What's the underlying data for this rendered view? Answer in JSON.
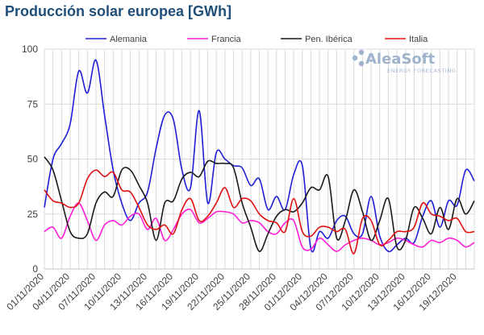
{
  "title": "Producción solar europea [GWh]",
  "logo": {
    "name": "AleaSoft",
    "tagline": "ENERGY FORECASTING"
  },
  "chart_data": {
    "type": "line",
    "title": "Producción solar europea [GWh]",
    "ylim": [
      0,
      100
    ],
    "yticks": [
      0,
      25,
      50,
      75,
      100
    ],
    "grid": true,
    "legend_position": "top",
    "x": [
      "01/11/2020",
      "02/11/2020",
      "03/11/2020",
      "04/11/2020",
      "05/11/2020",
      "06/11/2020",
      "07/11/2020",
      "08/11/2020",
      "09/11/2020",
      "10/11/2020",
      "11/11/2020",
      "12/11/2020",
      "13/11/2020",
      "14/11/2020",
      "15/11/2020",
      "16/11/2020",
      "17/11/2020",
      "18/11/2020",
      "19/11/2020",
      "20/11/2020",
      "21/11/2020",
      "22/11/2020",
      "23/11/2020",
      "24/11/2020",
      "25/11/2020",
      "26/11/2020",
      "27/11/2020",
      "28/11/2020",
      "29/11/2020",
      "30/11/2020",
      "01/12/2020",
      "02/12/2020",
      "03/12/2020",
      "04/12/2020",
      "05/12/2020",
      "06/12/2020",
      "07/12/2020",
      "08/12/2020",
      "09/12/2020",
      "10/12/2020",
      "11/12/2020",
      "12/12/2020",
      "13/12/2020",
      "14/12/2020",
      "15/12/2020",
      "16/12/2020",
      "17/12/2020",
      "18/12/2020",
      "19/12/2020",
      "20/12/2020",
      "21/12/2020"
    ],
    "xtick_labels": [
      "01/11/2020",
      "04/11/2020",
      "07/11/2020",
      "10/11/2020",
      "13/11/2020",
      "16/11/2020",
      "19/11/2020",
      "22/11/2020",
      "25/11/2020",
      "28/11/2020",
      "01/12/2020",
      "04/12/2020",
      "07/12/2020",
      "10/12/2020",
      "13/12/2020",
      "16/12/2020",
      "19/12/2020"
    ],
    "series": [
      {
        "name": "Alemania",
        "color": "#1f1fd6",
        "values": [
          28,
          50,
          57,
          66,
          90,
          80,
          95,
          70,
          45,
          30,
          22,
          30,
          35,
          55,
          70,
          68,
          45,
          37,
          72,
          30,
          53,
          50,
          47,
          46,
          38,
          41,
          27,
          33,
          27,
          43,
          47,
          9,
          17,
          14,
          22,
          24,
          16,
          16,
          33,
          15,
          8,
          11,
          14,
          12,
          24,
          31,
          19,
          31,
          29,
          45,
          40
        ]
      },
      {
        "name": "Francia",
        "color": "#ff1fd6",
        "values": [
          17,
          19,
          14,
          24,
          30,
          22,
          13,
          20,
          22,
          20,
          24,
          25,
          18,
          23,
          13,
          18,
          25,
          27,
          21,
          23,
          26,
          26,
          25,
          21,
          22,
          21,
          17,
          16,
          21,
          22,
          10,
          9,
          14,
          11,
          8,
          11,
          13,
          14,
          13,
          11,
          12,
          14,
          13,
          11,
          10,
          13,
          12,
          14,
          13,
          10,
          12
        ]
      },
      {
        "name": "Pen. Ibérica",
        "color": "#1a1a1a",
        "values": [
          51,
          45,
          31,
          17,
          14,
          16,
          30,
          35,
          33,
          45,
          45,
          38,
          30,
          13,
          30,
          31,
          41,
          44,
          42,
          49,
          48,
          48,
          46,
          30,
          19,
          8,
          16,
          24,
          27,
          26,
          30,
          37,
          36,
          42,
          14,
          22,
          36,
          26,
          13,
          22,
          32,
          10,
          13,
          28,
          23,
          16,
          28,
          18,
          32,
          25,
          31
        ]
      },
      {
        "name": "Italia",
        "color": "#e01010",
        "values": [
          36,
          31,
          30,
          28,
          30,
          41,
          45,
          42,
          44,
          36,
          35,
          28,
          20,
          18,
          20,
          16,
          27,
          32,
          22,
          24,
          30,
          37,
          28,
          32,
          31,
          25,
          22,
          21,
          17,
          32,
          17,
          15,
          19,
          19,
          17,
          18,
          7,
          23,
          22,
          11,
          13,
          17,
          17,
          19,
          30,
          25,
          24,
          22,
          23,
          17,
          17
        ]
      }
    ]
  }
}
